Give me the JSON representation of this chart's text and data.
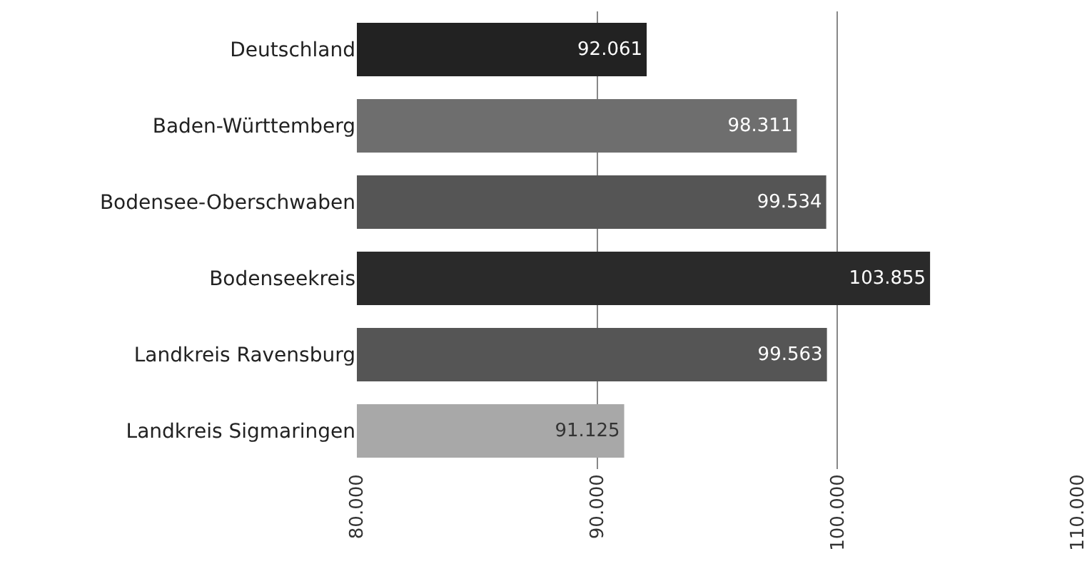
{
  "chart_data": {
    "type": "bar",
    "orientation": "horizontal",
    "categories": [
      "Deutschland",
      "Baden-Württemberg",
      "Bodensee-Oberschwaben",
      "Bodenseekreis",
      "Landkreis Ravensburg",
      "Landkreis Sigmaringen"
    ],
    "values": [
      92061,
      98311,
      99534,
      103855,
      99563,
      91125
    ],
    "value_labels": [
      "92.061",
      "98.311",
      "99.534",
      "103.855",
      "99.563",
      "91.125"
    ],
    "colors": [
      "#222222",
      "#6e6e6e",
      "#555555",
      "#2a2a2a",
      "#555555",
      "#a8a8a8"
    ],
    "xlim": [
      80000,
      110000
    ],
    "xticks": [
      {
        "value": 80000,
        "label": "80.000"
      },
      {
        "value": 90000,
        "label": "90.000"
      },
      {
        "value": 100000,
        "label": "100.000"
      },
      {
        "value": 110000,
        "label": "110.000"
      }
    ],
    "grid": "x",
    "legend": false
  }
}
